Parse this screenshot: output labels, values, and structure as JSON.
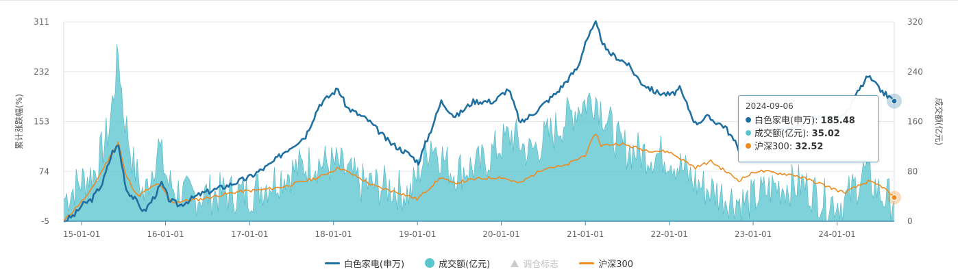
{
  "chart_data": {
    "type": "line",
    "x_ticks": [
      "15-01-01",
      "16-01-01",
      "17-01-01",
      "18-01-01",
      "19-01-01",
      "20-01-01",
      "21-01-01",
      "22-01-01",
      "23-01-01",
      "24-01-01"
    ],
    "y_left": {
      "label": "累计涨跌幅(%)",
      "ticks": [
        "311",
        "232",
        "153",
        "74",
        "-5"
      ],
      "range": [
        -5,
        311
      ]
    },
    "y_right": {
      "label": "成交额(亿元)",
      "ticks": [
        "320",
        "240",
        "160",
        "80",
        "0"
      ],
      "range": [
        0,
        320
      ]
    },
    "x_range": [
      "2014-10-15",
      "2024-09-06"
    ],
    "series": [
      {
        "name": "白色家电(申万)",
        "color": "#1f6fa0",
        "axis": "left",
        "kind": "line",
        "points": [
          [
            "2014-10-15",
            -5
          ],
          [
            "2014-12-01",
            5
          ],
          [
            "2015-01-01",
            20
          ],
          [
            "2015-02-15",
            30
          ],
          [
            "2015-04-01",
            55
          ],
          [
            "2015-05-15",
            105
          ],
          [
            "2015-06-10",
            115
          ],
          [
            "2015-07-15",
            45
          ],
          [
            "2015-08-20",
            30
          ],
          [
            "2015-09-30",
            10
          ],
          [
            "2015-11-15",
            35
          ],
          [
            "2015-12-15",
            55
          ],
          [
            "2016-01-15",
            30
          ],
          [
            "2016-03-01",
            20
          ],
          [
            "2016-06-01",
            38
          ],
          [
            "2016-10-01",
            52
          ],
          [
            "2017-01-01",
            65
          ],
          [
            "2017-04-01",
            85
          ],
          [
            "2017-06-01",
            105
          ],
          [
            "2017-09-01",
            130
          ],
          [
            "2017-11-01",
            180
          ],
          [
            "2018-01-20",
            205
          ],
          [
            "2018-03-01",
            175
          ],
          [
            "2018-06-01",
            155
          ],
          [
            "2018-09-01",
            120
          ],
          [
            "2018-12-01",
            100
          ],
          [
            "2019-01-05",
            88
          ],
          [
            "2019-03-01",
            140
          ],
          [
            "2019-04-15",
            185
          ],
          [
            "2019-06-15",
            160
          ],
          [
            "2019-09-01",
            185
          ],
          [
            "2019-12-01",
            185
          ],
          [
            "2020-02-01",
            205
          ],
          [
            "2020-03-25",
            150
          ],
          [
            "2020-06-01",
            170
          ],
          [
            "2020-09-01",
            200
          ],
          [
            "2020-12-01",
            240
          ],
          [
            "2021-01-01",
            280
          ],
          [
            "2021-02-15",
            308
          ],
          [
            "2021-04-01",
            265
          ],
          [
            "2021-07-01",
            245
          ],
          [
            "2021-09-01",
            215
          ],
          [
            "2021-11-01",
            200
          ],
          [
            "2022-01-10",
            195
          ],
          [
            "2022-02-15",
            205
          ],
          [
            "2022-04-25",
            150
          ],
          [
            "2022-06-15",
            160
          ],
          [
            "2022-09-01",
            145
          ],
          [
            "2022-10-30",
            110
          ],
          [
            "2023-01-01",
            135
          ],
          [
            "2023-04-01",
            140
          ],
          [
            "2023-07-01",
            140
          ],
          [
            "2023-09-01",
            155
          ],
          [
            "2023-11-01",
            160
          ],
          [
            "2024-02-05",
            160
          ],
          [
            "2024-03-15",
            190
          ],
          [
            "2024-05-15",
            225
          ],
          [
            "2024-07-01",
            205
          ],
          [
            "2024-09-06",
            185.48
          ]
        ]
      },
      {
        "name": "成交额(亿元)",
        "color": "#5bc4cf",
        "axis": "right",
        "kind": "area",
        "points": [
          [
            "2014-10-15",
            35
          ],
          [
            "2014-12-15",
            60
          ],
          [
            "2015-03-01",
            80
          ],
          [
            "2015-05-01",
            150
          ],
          [
            "2015-06-10",
            270
          ],
          [
            "2015-07-01",
            180
          ],
          [
            "2015-08-15",
            90
          ],
          [
            "2015-09-30",
            40
          ],
          [
            "2015-12-01",
            120
          ],
          [
            "2016-01-15",
            60
          ],
          [
            "2016-04-01",
            40
          ],
          [
            "2016-09-01",
            45
          ],
          [
            "2017-01-01",
            45
          ],
          [
            "2017-06-01",
            75
          ],
          [
            "2017-10-01",
            95
          ],
          [
            "2018-01-20",
            90
          ],
          [
            "2018-05-01",
            60
          ],
          [
            "2018-09-01",
            55
          ],
          [
            "2018-12-01",
            45
          ],
          [
            "2019-03-01",
            130
          ],
          [
            "2019-06-01",
            80
          ],
          [
            "2019-10-01",
            90
          ],
          [
            "2020-02-15",
            140
          ],
          [
            "2020-05-01",
            110
          ],
          [
            "2020-09-01",
            150
          ],
          [
            "2020-12-01",
            185
          ],
          [
            "2021-02-15",
            200
          ],
          [
            "2021-06-01",
            120
          ],
          [
            "2021-09-01",
            110
          ],
          [
            "2022-01-01",
            105
          ],
          [
            "2022-05-01",
            60
          ],
          [
            "2022-09-01",
            40
          ],
          [
            "2022-12-01",
            30
          ],
          [
            "2023-04-01",
            55
          ],
          [
            "2023-08-01",
            60
          ],
          [
            "2023-11-01",
            35
          ],
          [
            "2024-02-01",
            30
          ],
          [
            "2024-05-01",
            80
          ],
          [
            "2024-07-15",
            40
          ],
          [
            "2024-09-06",
            35.02
          ]
        ]
      },
      {
        "name": "沪深300",
        "color": "#ef8a1f",
        "axis": "left",
        "kind": "line",
        "points": [
          [
            "2014-10-15",
            -5
          ],
          [
            "2014-12-15",
            20
          ],
          [
            "2015-02-01",
            38
          ],
          [
            "2015-04-15",
            85
          ],
          [
            "2015-06-10",
            120
          ],
          [
            "2015-07-10",
            70
          ],
          [
            "2015-09-01",
            35
          ],
          [
            "2015-12-01",
            55
          ],
          [
            "2016-01-28",
            25
          ],
          [
            "2016-06-01",
            30
          ],
          [
            "2016-11-15",
            42
          ],
          [
            "2017-03-01",
            45
          ],
          [
            "2017-06-01",
            50
          ],
          [
            "2017-11-01",
            65
          ],
          [
            "2018-01-25",
            80
          ],
          [
            "2018-04-15",
            65
          ],
          [
            "2018-07-01",
            50
          ],
          [
            "2018-10-15",
            40
          ],
          [
            "2018-12-31",
            30
          ],
          [
            "2019-04-15",
            65
          ],
          [
            "2019-06-01",
            55
          ],
          [
            "2019-09-15",
            62
          ],
          [
            "2019-12-31",
            65
          ],
          [
            "2020-03-20",
            55
          ],
          [
            "2020-07-10",
            80
          ],
          [
            "2020-10-01",
            82
          ],
          [
            "2020-12-31",
            100
          ],
          [
            "2021-02-15",
            135
          ],
          [
            "2021-03-10",
            115
          ],
          [
            "2021-06-01",
            118
          ],
          [
            "2021-09-15",
            108
          ],
          [
            "2021-12-31",
            105
          ],
          [
            "2022-04-25",
            80
          ],
          [
            "2022-07-01",
            90
          ],
          [
            "2022-10-30",
            60
          ],
          [
            "2023-01-20",
            75
          ],
          [
            "2023-04-01",
            72
          ],
          [
            "2023-07-01",
            68
          ],
          [
            "2023-10-15",
            55
          ],
          [
            "2024-02-01",
            40
          ],
          [
            "2024-05-15",
            58
          ],
          [
            "2024-07-15",
            50
          ],
          [
            "2024-09-06",
            32.52
          ]
        ]
      }
    ],
    "tooltip": {
      "date": "2024-09-06",
      "rows": [
        {
          "name": "白色家电(申万)",
          "value": "185.48",
          "color": "#1f6fa0"
        },
        {
          "name": "成交额(亿元)",
          "value": "35.02",
          "color": "#5bc4cf"
        },
        {
          "name": "沪深300",
          "value": "32.52",
          "color": "#ef8a1f"
        }
      ]
    },
    "legend": [
      {
        "label": "白色家电(申万)",
        "symbol": "line",
        "color": "#1f6fa0",
        "active": true
      },
      {
        "label": "成交额(亿元)",
        "symbol": "dot",
        "color": "#5bc4cf",
        "active": true
      },
      {
        "label": "调仓标志",
        "symbol": "triangle",
        "color": "#cccccc",
        "active": false
      },
      {
        "label": "沪深300",
        "symbol": "line",
        "color": "#ef8a1f",
        "active": true
      }
    ],
    "grid": true,
    "legend_position": "bottom"
  }
}
